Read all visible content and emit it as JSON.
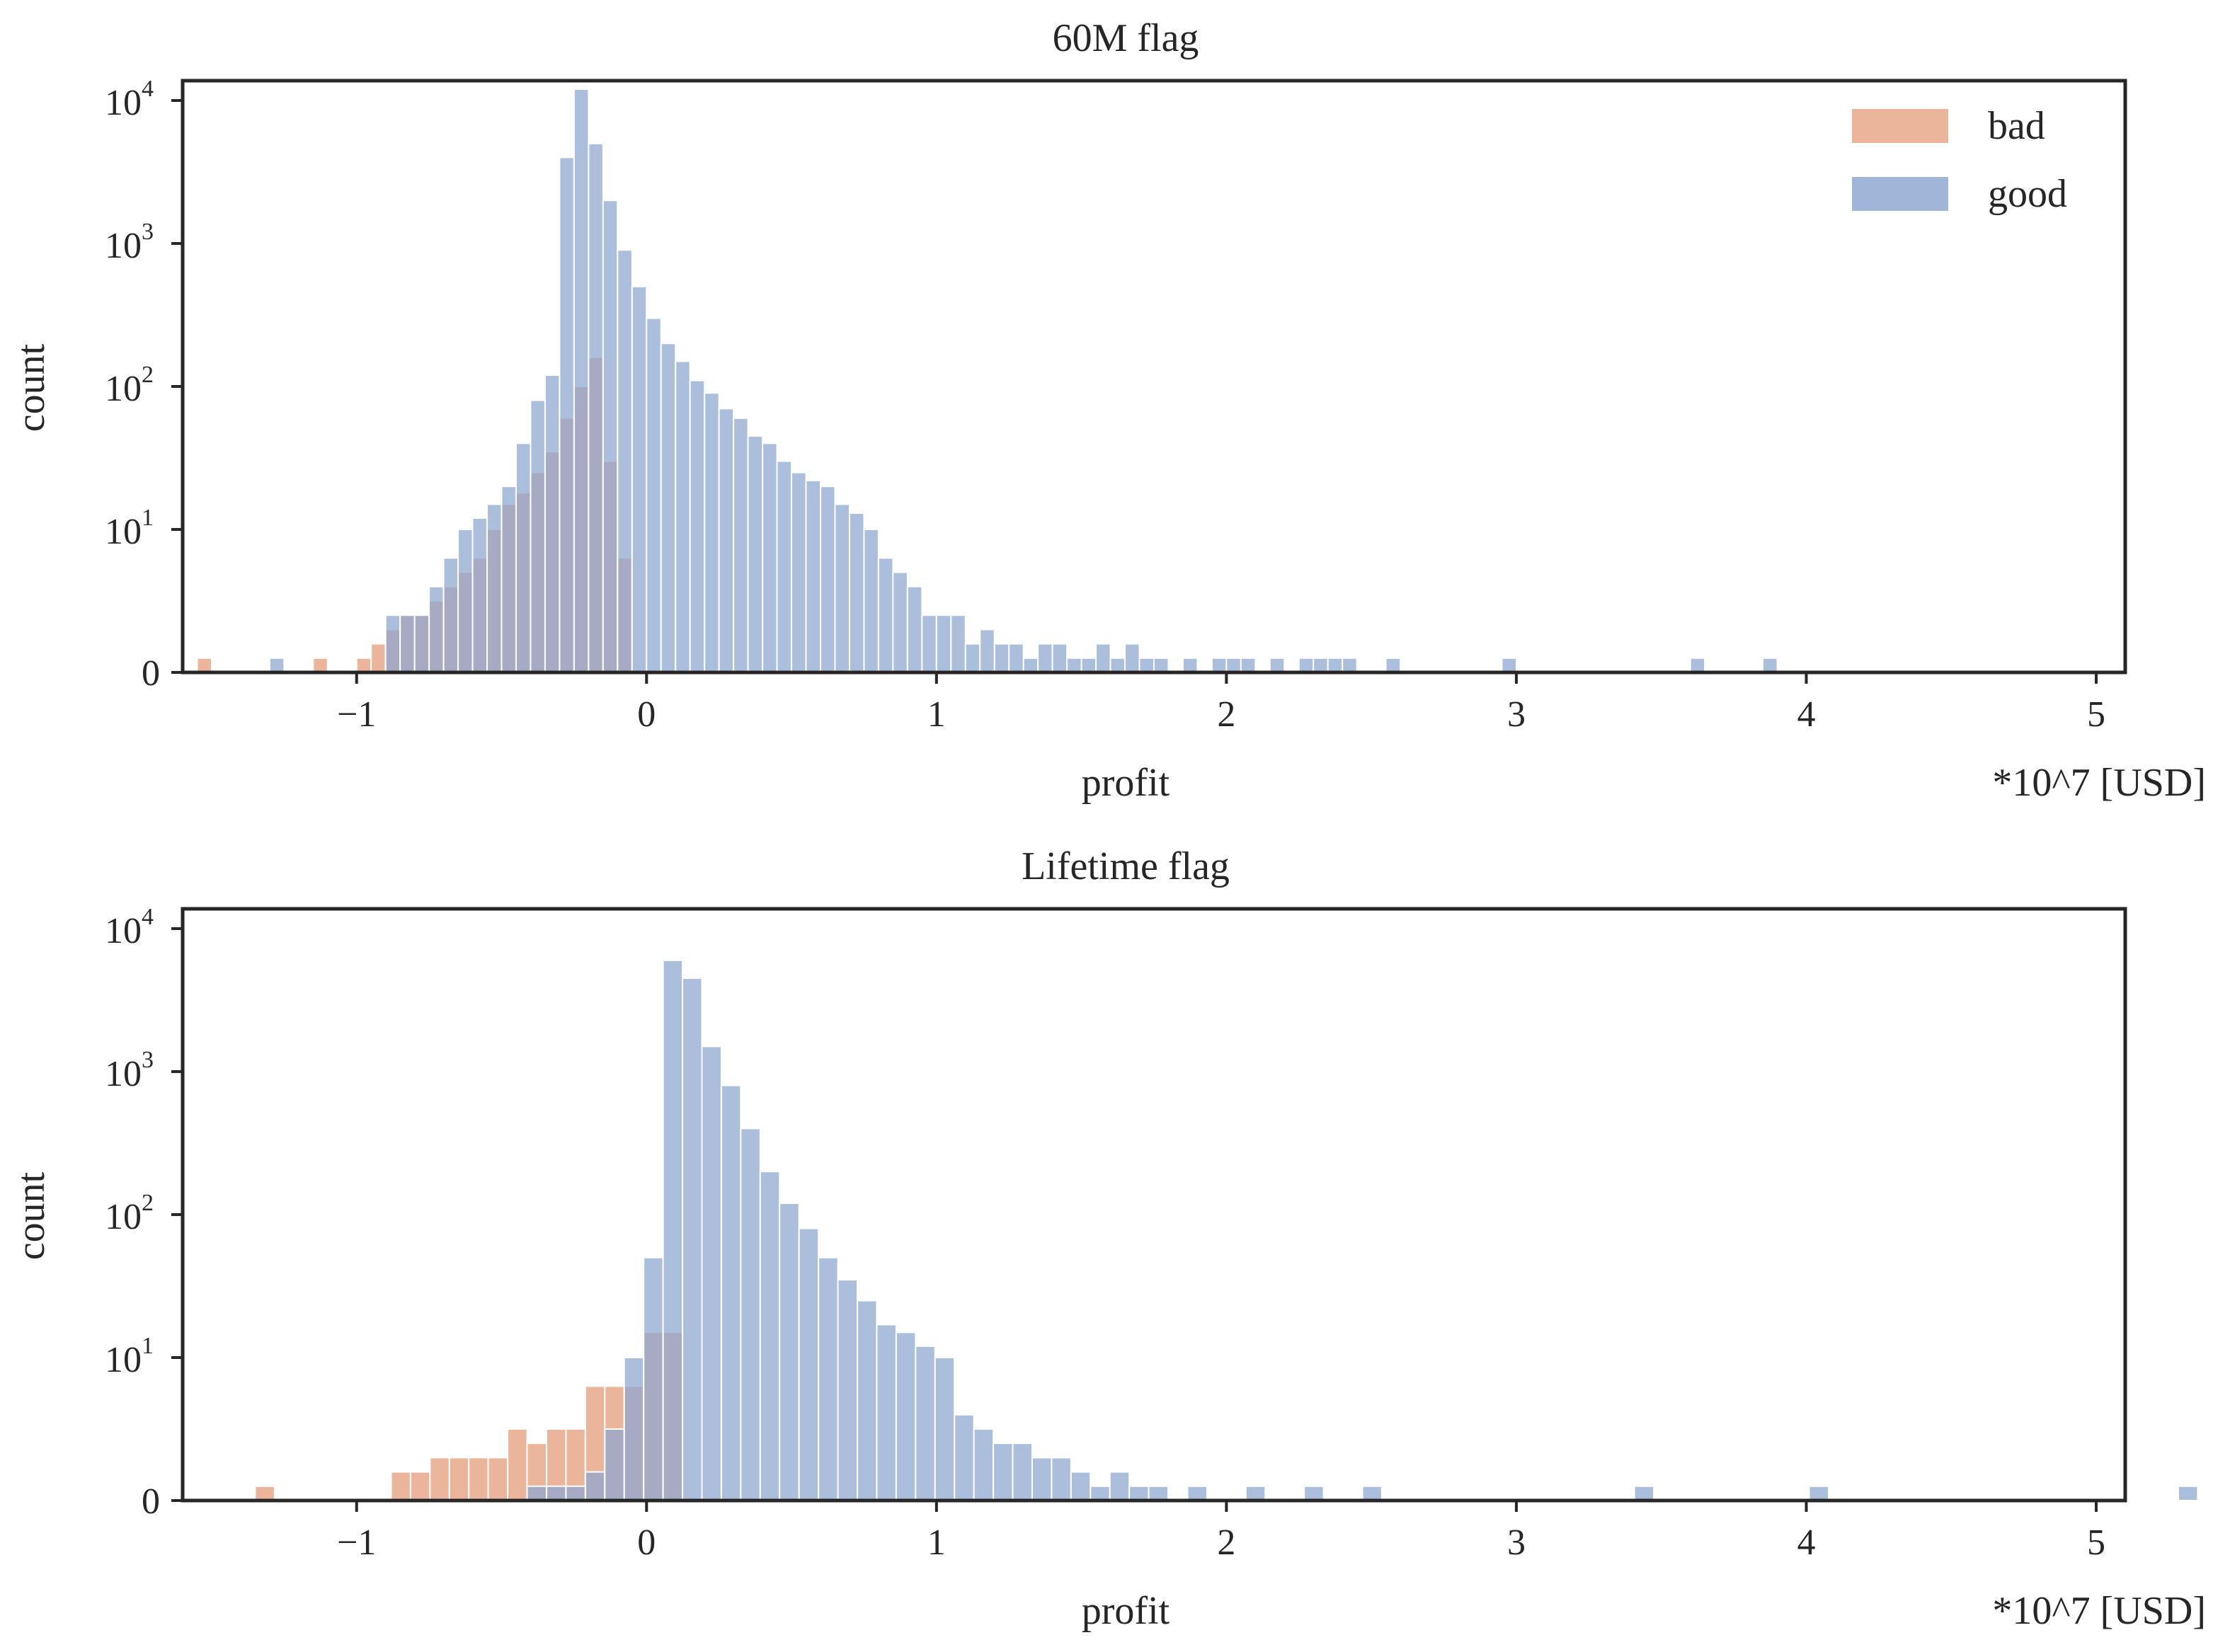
{
  "chart_data": [
    {
      "type": "histogram",
      "title": "60M flag",
      "xlabel": "profit",
      "xunit": "*10^7 [USD]",
      "ylabel": "count",
      "yscale": "symlog",
      "xlim": [
        -1.6,
        5.1
      ],
      "xticks": [
        "−1",
        "0",
        "1",
        "2",
        "3",
        "4",
        "5"
      ],
      "yticks": [
        {
          "base": "0",
          "exp": ""
        },
        {
          "base": "10",
          "exp": "1"
        },
        {
          "base": "10",
          "exp": "2"
        },
        {
          "base": "10",
          "exp": "3"
        },
        {
          "base": "10",
          "exp": "4"
        }
      ],
      "bin_start": -1.55,
      "bin_width": 0.05,
      "legend": {
        "position": "upper right",
        "entries": [
          "bad",
          "good"
        ]
      },
      "series": [
        {
          "name": "bad",
          "color": "#e8a889",
          "start_bin": 0,
          "values": [
            1,
            0,
            0,
            0,
            0,
            0,
            0,
            0,
            1,
            0,
            0,
            1,
            2,
            3,
            4,
            4,
            5,
            6,
            7,
            8,
            10,
            15,
            18,
            25,
            35,
            60,
            100,
            160,
            30,
            8
          ]
        },
        {
          "name": "good",
          "color": "#8fa8d0",
          "start_bin": 0,
          "values": [
            0,
            0,
            0,
            0,
            0,
            1,
            0,
            0,
            0,
            0,
            0,
            0,
            0,
            4,
            4,
            4,
            6,
            8,
            10,
            12,
            15,
            20,
            40,
            80,
            120,
            4000,
            12000,
            5000,
            2000,
            900,
            500,
            300,
            200,
            150,
            110,
            90,
            70,
            60,
            45,
            40,
            30,
            25,
            22,
            20,
            15,
            13,
            10,
            8,
            7,
            6,
            4,
            4,
            4,
            2,
            3,
            2,
            2,
            1,
            2,
            2,
            1,
            1,
            2,
            1,
            2,
            1,
            1,
            0,
            1,
            0,
            1,
            1,
            1,
            0,
            1,
            0,
            1,
            1,
            1,
            1,
            0,
            0,
            1,
            0,
            0,
            0,
            0,
            0,
            0,
            0,
            1,
            0,
            0,
            0,
            0,
            0,
            0,
            0,
            0,
            0,
            0,
            0,
            0,
            1,
            0,
            0,
            0,
            0,
            1
          ]
        }
      ]
    },
    {
      "type": "histogram",
      "title": "Lifetime flag",
      "xlabel": "profit",
      "xunit": "*10^7 [USD]",
      "ylabel": "count",
      "yscale": "symlog",
      "xlim": [
        -1.6,
        5.1
      ],
      "xticks": [
        "−1",
        "0",
        "1",
        "2",
        "3",
        "4",
        "5"
      ],
      "yticks": [
        {
          "base": "0",
          "exp": ""
        },
        {
          "base": "10",
          "exp": "1"
        },
        {
          "base": "10",
          "exp": "2"
        },
        {
          "base": "10",
          "exp": "3"
        },
        {
          "base": "10",
          "exp": "4"
        }
      ],
      "bin_start": -1.35,
      "bin_width": 0.067,
      "series": [
        {
          "name": "bad",
          "color": "#e8a889",
          "start_bin": 0,
          "values": [
            1,
            0,
            0,
            0,
            0,
            0,
            0,
            2,
            2,
            3,
            3,
            3,
            3,
            5,
            4,
            5,
            5,
            8,
            8,
            8,
            15,
            15
          ]
        },
        {
          "name": "good",
          "color": "#8fa8d0",
          "start_bin": 0,
          "values": [
            0,
            0,
            0,
            0,
            0,
            0,
            0,
            0,
            0,
            0,
            0,
            0,
            0,
            0,
            1,
            1,
            1,
            2,
            5,
            10,
            50,
            6000,
            4500,
            1500,
            800,
            400,
            200,
            120,
            80,
            50,
            35,
            25,
            17,
            15,
            12,
            10,
            6,
            5,
            4,
            4,
            3,
            3,
            2,
            1,
            2,
            1,
            1,
            0,
            1,
            0,
            0,
            1,
            0,
            0,
            1,
            0,
            0,
            1,
            0,
            0,
            0,
            0,
            0,
            0,
            0,
            0,
            0,
            0,
            0,
            0,
            0,
            1,
            0,
            0,
            0,
            0,
            0,
            0,
            0,
            0,
            1,
            0,
            0,
            0,
            0,
            0,
            0,
            0,
            0,
            0,
            0,
            0,
            0,
            0,
            0,
            0,
            0,
            0,
            0,
            1,
            0,
            0,
            0,
            0,
            0,
            0,
            0,
            0,
            0,
            0,
            0,
            0,
            0,
            0,
            0
          ]
        }
      ]
    }
  ]
}
